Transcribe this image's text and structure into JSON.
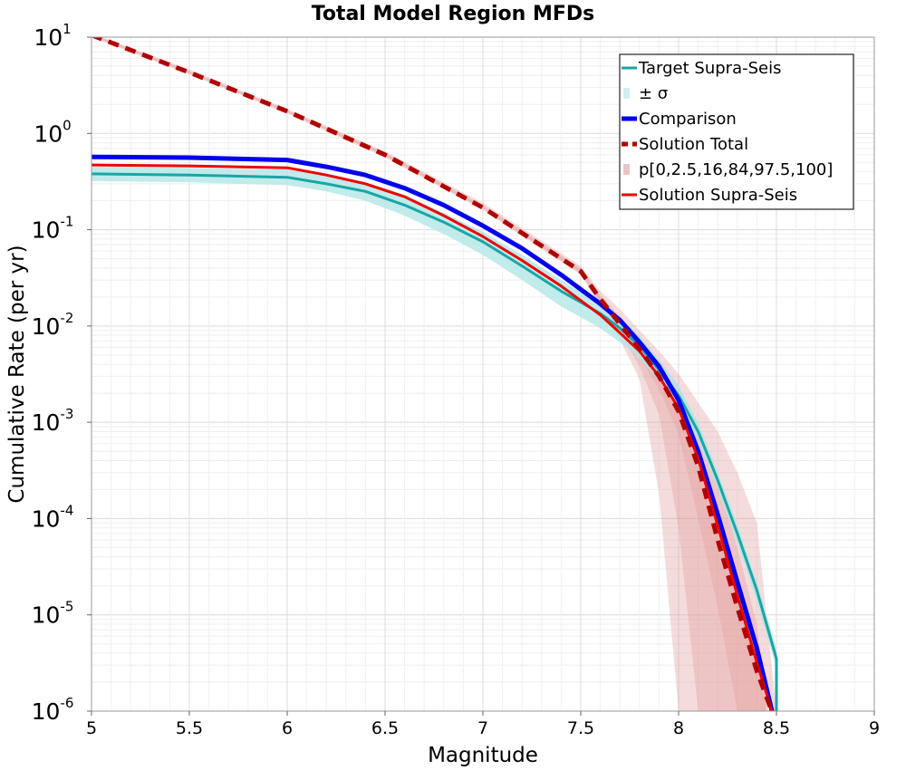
{
  "chart_data": {
    "type": "line",
    "title": "Total Model Region MFDs",
    "xlabel": "Magnitude",
    "ylabel": "Cumulative Rate (per yr)",
    "xlim": [
      5,
      9
    ],
    "ylim": [
      1e-06,
      10
    ],
    "yscale": "log",
    "grid": true,
    "legend_position": "top-right",
    "x_ticks": [
      "5",
      "5.5",
      "6",
      "6.5",
      "7",
      "7.5",
      "8",
      "8.5",
      "9"
    ],
    "y_ticks": [
      {
        "base": "10",
        "exp": "-6"
      },
      {
        "base": "10",
        "exp": "-5"
      },
      {
        "base": "10",
        "exp": "-4"
      },
      {
        "base": "10",
        "exp": "-3"
      },
      {
        "base": "10",
        "exp": "-2"
      },
      {
        "base": "10",
        "exp": "-1"
      },
      {
        "base": "10",
        "exp": "0"
      },
      {
        "base": "10",
        "exp": "1"
      }
    ],
    "colors": {
      "target": "#1aa5a5",
      "sigma_band": "#b3e6e6",
      "comparison": "#0000ee",
      "solution_total": "#b00000",
      "percentile_band": "#e39a9a",
      "solution_supra": "#ee0000"
    },
    "series": [
      {
        "name": "Solution Total",
        "style": "dashed",
        "x": [
          5.0,
          5.5,
          6.0,
          6.5,
          7.0,
          7.5,
          7.6,
          7.7,
          7.8,
          7.9,
          8.0,
          8.1,
          8.2,
          8.3,
          8.4,
          8.48
        ],
        "y": [
          10.5,
          4.3,
          1.7,
          0.6,
          0.17,
          0.037,
          0.019,
          0.0105,
          0.0058,
          0.003,
          0.0013,
          0.00035,
          6e-05,
          1.2e-05,
          2.6e-06,
          9.5e-07
        ]
      },
      {
        "name": "Comparison",
        "style": "thick",
        "x": [
          5.0,
          5.5,
          6.0,
          6.2,
          6.4,
          6.6,
          6.8,
          7.0,
          7.2,
          7.4,
          7.6,
          7.7,
          7.8,
          7.9,
          8.0,
          8.1,
          8.2,
          8.3,
          8.4,
          8.48
        ],
        "y": [
          0.57,
          0.56,
          0.53,
          0.45,
          0.37,
          0.27,
          0.18,
          0.11,
          0.064,
          0.034,
          0.017,
          0.0115,
          0.0068,
          0.0038,
          0.0017,
          0.0005,
          0.00011,
          2.2e-05,
          4.5e-06,
          9.5e-07
        ]
      },
      {
        "name": "Solution Supra-Seis",
        "style": "solid",
        "x": [
          5.0,
          5.5,
          6.0,
          6.2,
          6.4,
          6.6,
          6.8,
          7.0,
          7.2,
          7.4,
          7.6,
          7.7,
          7.8,
          7.9,
          8.0,
          8.1,
          8.2,
          8.3,
          8.4,
          8.48
        ],
        "y": [
          0.47,
          0.46,
          0.44,
          0.37,
          0.3,
          0.22,
          0.14,
          0.085,
          0.048,
          0.026,
          0.013,
          0.0085,
          0.0055,
          0.003,
          0.0014,
          0.00042,
          8.5e-05,
          1.6e-05,
          3.2e-06,
          9.5e-07
        ]
      },
      {
        "name": "Target Supra-Seis",
        "style": "solid",
        "x": [
          5.0,
          5.5,
          6.0,
          6.2,
          6.4,
          6.6,
          6.8,
          7.0,
          7.2,
          7.4,
          7.6,
          7.7,
          7.8,
          7.9,
          8.0,
          8.1,
          8.2,
          8.3,
          8.4,
          8.5,
          8.5
        ],
        "y": [
          0.38,
          0.37,
          0.35,
          0.3,
          0.25,
          0.18,
          0.12,
          0.075,
          0.042,
          0.023,
          0.0135,
          0.0095,
          0.0062,
          0.0035,
          0.0019,
          0.0008,
          0.00025,
          7e-05,
          1.8e-05,
          3.5e-06,
          9.5e-07
        ]
      }
    ],
    "bands": [
      {
        "name": "± σ",
        "x": [
          5.0,
          5.5,
          6.0,
          6.2,
          6.4,
          6.6,
          6.8,
          7.0,
          7.2,
          7.4,
          7.6,
          7.7,
          7.8,
          7.9,
          8.0,
          8.1,
          8.2,
          8.3,
          8.4,
          8.5
        ],
        "lower": [
          0.32,
          0.31,
          0.29,
          0.25,
          0.2,
          0.14,
          0.09,
          0.055,
          0.03,
          0.016,
          0.0095,
          0.0068,
          0.0046,
          0.0027,
          0.0015,
          0.00065,
          0.0002,
          5.5e-05,
          1.4e-05,
          2.8e-06
        ],
        "upper": [
          0.45,
          0.44,
          0.42,
          0.37,
          0.31,
          0.23,
          0.15,
          0.095,
          0.055,
          0.03,
          0.017,
          0.012,
          0.008,
          0.0045,
          0.0024,
          0.001,
          0.00031,
          8.8e-05,
          2.2e-05,
          4.5e-06
        ]
      },
      {
        "name": "p[0,2.5,16,84,97.5,100]",
        "levels": [
          {
            "x": [
              5.0,
              5.5,
              6.0,
              6.5,
              7.0,
              7.5,
              7.6,
              7.7,
              7.8,
              7.9,
              8.0,
              8.1,
              8.2,
              8.3,
              8.4,
              8.5
            ],
            "lower": [
              10,
              4.1,
              1.6,
              0.56,
              0.16,
              0.034,
              0.016,
              0.0072,
              0.0028,
              0.00018,
              1e-06,
              1e-06,
              1e-06,
              1e-06,
              1e-06,
              1e-06
            ],
            "upper": [
              11,
              4.6,
              1.8,
              0.65,
              0.19,
              0.042,
              0.023,
              0.015,
              0.009,
              0.0055,
              0.0032,
              0.0016,
              0.0008,
              0.0003,
              9e-05,
              1e-06
            ]
          },
          {
            "x": [
              5.0,
              5.5,
              6.0,
              6.5,
              7.0,
              7.5,
              7.6,
              7.7,
              7.8,
              7.9,
              8.0,
              8.1,
              8.2,
              8.3,
              8.4,
              8.45
            ],
            "lower": [
              10.2,
              4.2,
              1.65,
              0.58,
              0.165,
              0.035,
              0.017,
              0.0085,
              0.0038,
              0.0012,
              8e-05,
              1e-06,
              1e-06,
              1e-06,
              1e-06,
              1e-06
            ],
            "upper": [
              10.8,
              4.45,
              1.75,
              0.63,
              0.18,
              0.04,
              0.021,
              0.0125,
              0.0075,
              0.0045,
              0.0024,
              0.00095,
              0.00025,
              5e-05,
              8e-06,
              1e-06
            ]
          },
          {
            "x": [
              5.0,
              5.5,
              6.0,
              6.5,
              7.0,
              7.5,
              7.6,
              7.7,
              7.8,
              7.9,
              8.0,
              8.1,
              8.2,
              8.3,
              8.4,
              8.45
            ],
            "lower": [
              10.4,
              4.25,
              1.68,
              0.59,
              0.168,
              0.036,
              0.018,
              0.0095,
              0.0048,
              0.0022,
              0.00075,
              0.0001,
              1.2e-05,
              1e-06,
              1e-06,
              1e-06
            ],
            "upper": [
              10.6,
              4.35,
              1.72,
              0.61,
              0.172,
              0.038,
              0.02,
              0.0112,
              0.0064,
              0.0036,
              0.0017,
              0.00055,
              0.00011,
              2.2e-05,
              4e-06,
              1e-06
            ]
          }
        ]
      }
    ],
    "legend": [
      {
        "label": "Target Supra-Seis",
        "kind": "line",
        "color_key": "target"
      },
      {
        "label": "± σ",
        "kind": "patch",
        "color_key": "sigma_band"
      },
      {
        "label": "Comparison",
        "kind": "thick",
        "color_key": "comparison"
      },
      {
        "label": "Solution Total",
        "kind": "dashed",
        "color_key": "solution_total"
      },
      {
        "label": "p[0,2.5,16,84,97.5,100]",
        "kind": "patch",
        "color_key": "percentile_band"
      },
      {
        "label": "Solution Supra-Seis",
        "kind": "line",
        "color_key": "solution_supra"
      }
    ]
  }
}
